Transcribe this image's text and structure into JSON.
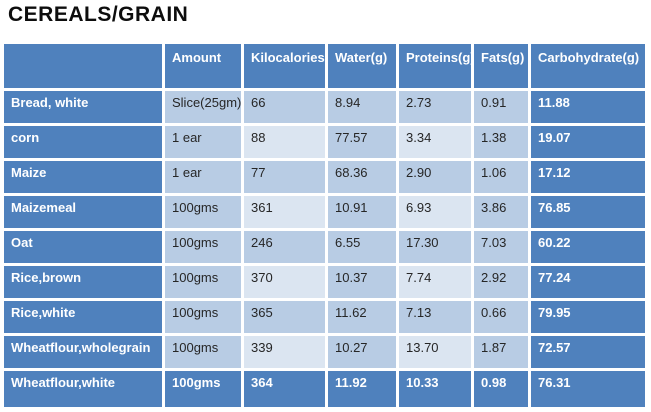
{
  "title": "CEREALS/GRAIN",
  "colors": {
    "accent_dark_blue": "#4f81bd",
    "band_medium_blue": "#b8cce4",
    "band_light_blue": "#dbe5f1",
    "separator_white": "#ffffff",
    "title_text": "#0d0d0d",
    "cell_text_dark": "#262626",
    "cell_text_light": "#ffffff"
  },
  "table": {
    "columns": [
      "",
      "Amount",
      "Kilocalories",
      "Water(g)",
      "Proteins(g)",
      "Fats(g)",
      "Carbohydrate(g)"
    ],
    "rows": [
      {
        "label": "Bread, white",
        "amount": "Slice(25gm)",
        "kilocalories": "66",
        "water": "8.94",
        "proteins": "2.73",
        "fats": "0.91",
        "carbohydrate": "11.88",
        "banded": false,
        "summary": false
      },
      {
        "label": "corn",
        "amount": "1 ear",
        "kilocalories": "88",
        "water": "77.57",
        "proteins": "3.34",
        "fats": "1.38",
        "carbohydrate": "19.07",
        "banded": true,
        "summary": false
      },
      {
        "label": "Maize",
        "amount": "1 ear",
        "kilocalories": "77",
        "water": "68.36",
        "proteins": "2.90",
        "fats": "1.06",
        "carbohydrate": "17.12",
        "banded": false,
        "summary": false
      },
      {
        "label": "Maizemeal",
        "amount": "100gms",
        "kilocalories": "361",
        "water": "10.91",
        "proteins": "6.93",
        "fats": "3.86",
        "carbohydrate": "76.85",
        "banded": true,
        "summary": false
      },
      {
        "label": "Oat",
        "amount": "100gms",
        "kilocalories": "246",
        "water": "6.55",
        "proteins": "17.30",
        "fats": "7.03",
        "carbohydrate": "60.22",
        "banded": false,
        "summary": false
      },
      {
        "label": "Rice,brown",
        "amount": "100gms",
        "kilocalories": "370",
        "water": "10.37",
        "proteins": "7.74",
        "fats": "2.92",
        "carbohydrate": "77.24",
        "banded": true,
        "summary": false
      },
      {
        "label": "Rice,white",
        "amount": "100gms",
        "kilocalories": "365",
        "water": "11.62",
        "proteins": "7.13",
        "fats": "0.66",
        "carbohydrate": "79.95",
        "banded": false,
        "summary": false
      },
      {
        "label": "Wheatflour,wholegrain",
        "amount": "100gms",
        "kilocalories": "339",
        "water": "10.27",
        "proteins": "13.70",
        "fats": "1.87",
        "carbohydrate": "72.57",
        "banded": true,
        "summary": false
      },
      {
        "label": "Wheatflour,white",
        "amount": "100gms",
        "kilocalories": "364",
        "water": "11.92",
        "proteins": "10.33",
        "fats": "0.98",
        "carbohydrate": "76.31",
        "banded": false,
        "summary": true
      }
    ]
  }
}
